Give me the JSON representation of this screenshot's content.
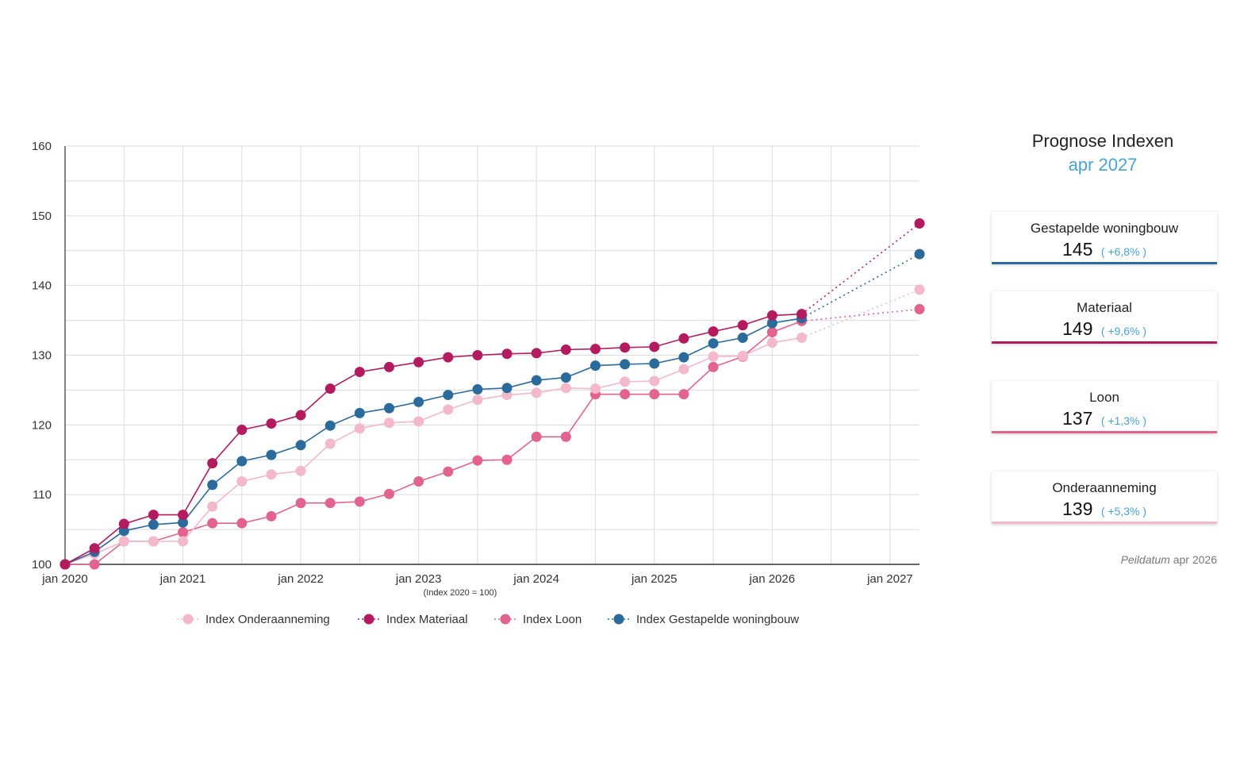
{
  "chart_data": {
    "type": "line",
    "xlabel": "",
    "ylabel": "",
    "x_note": "(Index 2020 = 100)",
    "ylim": [
      100,
      160
    ],
    "yticks": [
      100,
      110,
      120,
      130,
      140,
      150,
      160
    ],
    "xlim": [
      "2020-01",
      "2027-04"
    ],
    "xticks": [
      "jan 2020",
      "jan 2021",
      "jan 2022",
      "jan 2023",
      "jan 2024",
      "jan 2025",
      "jan 2026",
      "jan 2027"
    ],
    "grid": true,
    "legend_position": "bottom",
    "x": [
      "2020-01",
      "2020-04",
      "2020-07",
      "2020-10",
      "2021-01",
      "2021-04",
      "2021-07",
      "2021-10",
      "2022-01",
      "2022-04",
      "2022-07",
      "2022-10",
      "2023-01",
      "2023-04",
      "2023-07",
      "2023-10",
      "2024-01",
      "2024-04",
      "2024-07",
      "2024-10",
      "2025-01",
      "2025-04",
      "2025-07",
      "2025-10",
      "2026-01",
      "2026-04"
    ],
    "forecast_x": "2027-04",
    "series": [
      {
        "name": "Index Onderaanneming",
        "color": "#f4b8cb",
        "values": [
          100,
          101.5,
          103.3,
          103.3,
          103.3,
          108.3,
          111.9,
          112.9,
          113.4,
          117.3,
          119.5,
          120.3,
          120.5,
          122.2,
          123.6,
          124.3,
          124.6,
          125.3,
          125.2,
          126.2,
          126.3,
          128.0,
          129.8,
          129.9,
          131.8,
          132.5
        ],
        "forecast": 139.4
      },
      {
        "name": "Index Materiaal",
        "color": "#b31b5e",
        "values": [
          100,
          102.3,
          105.8,
          107.1,
          107.1,
          114.5,
          119.3,
          120.2,
          121.4,
          125.2,
          127.6,
          128.3,
          129.0,
          129.7,
          130.0,
          130.2,
          130.3,
          130.8,
          130.9,
          131.1,
          131.2,
          132.4,
          133.4,
          134.3,
          135.7,
          135.9
        ],
        "forecast": 148.9
      },
      {
        "name": "Index Loon",
        "color": "#e2638d",
        "values": [
          100,
          100.0,
          103.3,
          103.3,
          104.6,
          105.9,
          105.9,
          106.9,
          108.8,
          108.8,
          109.0,
          110.1,
          111.9,
          113.3,
          114.9,
          115.0,
          118.3,
          118.3,
          124.4,
          124.4,
          124.4,
          124.4,
          128.3,
          129.8,
          133.3,
          134.9
        ],
        "forecast": 136.6
      },
      {
        "name": "Index Gestapelde woningbouw",
        "color": "#2a6b9c",
        "values": [
          100,
          101.8,
          104.8,
          105.7,
          106.0,
          111.4,
          114.8,
          115.7,
          117.1,
          119.9,
          121.7,
          122.4,
          123.3,
          124.3,
          125.1,
          125.3,
          126.4,
          126.8,
          128.5,
          128.7,
          128.8,
          129.7,
          131.7,
          132.5,
          134.6,
          135.3
        ],
        "forecast": 144.5
      }
    ]
  },
  "panel": {
    "title": "Prognose Indexen",
    "date": "apr 2027",
    "date_color": "#4aa3d6",
    "change_color": "#4aa3d6",
    "cards": [
      {
        "label": "Gestapelde woningbouw",
        "value": "145",
        "change": "( +6,8% )",
        "color": "#2a6b9c"
      },
      {
        "label": "Materiaal",
        "value": "149",
        "change": "( +9,6% )",
        "color": "#b31b5e"
      },
      {
        "label": "Loon",
        "value": "137",
        "change": "( +1,3% )",
        "color": "#e2638d"
      },
      {
        "label": "Onderaanneming",
        "value": "139",
        "change": "( +5,3% )",
        "color": "#f4b8cb"
      }
    ],
    "footnote_label": "Peildatum",
    "footnote_date": "apr 2026"
  }
}
